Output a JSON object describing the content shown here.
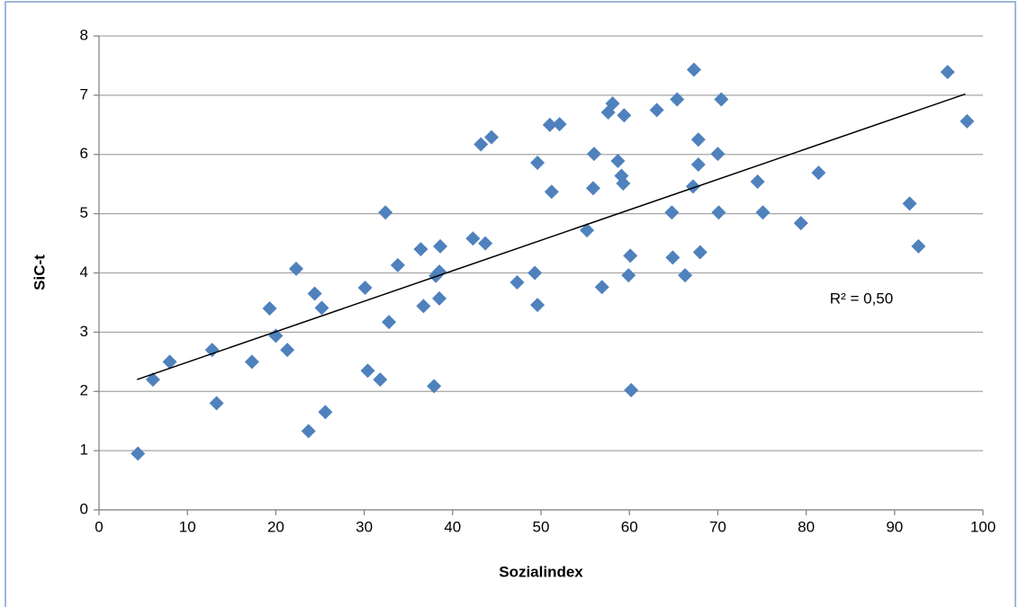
{
  "chart_data": {
    "type": "scatter",
    "x_label": "Sozialindex",
    "y_label": "SiC-t",
    "annotation": "R² = 0,50",
    "color": "#4f81bd",
    "grid": true,
    "xlim": [
      0,
      100
    ],
    "xticks": [
      0,
      10,
      20,
      30,
      40,
      50,
      60,
      70,
      80,
      90,
      100
    ],
    "ylim": [
      0,
      8
    ],
    "yticks": [
      0,
      1,
      2,
      3,
      4,
      5,
      6,
      7,
      8
    ],
    "x": [
      4.4,
      6.1,
      8.0,
      12.8,
      13.3,
      17.3,
      19.3,
      20.0,
      21.3,
      22.3,
      23.7,
      24.4,
      25.2,
      25.6,
      30.1,
      30.4,
      31.8,
      32.4,
      32.8,
      33.8,
      36.4,
      36.7,
      37.9,
      38.1,
      38.5,
      38.5,
      38.6,
      42.3,
      43.7,
      43.2,
      44.4,
      47.3,
      49.3,
      49.6,
      49.6,
      51.0,
      51.2,
      52.1,
      55.2,
      56.0,
      55.9,
      56.9,
      57.6,
      58.1,
      58.7,
      59.1,
      59.3,
      59.4,
      59.9,
      60.1,
      60.2,
      63.1,
      64.8,
      64.9,
      65.4,
      66.3,
      67.2,
      67.3,
      67.8,
      67.8,
      68.0,
      70.0,
      70.1,
      70.4,
      74.5,
      75.1,
      79.4,
      81.4,
      91.7,
      92.7,
      96.0,
      98.2
    ],
    "values": [
      0.95,
      2.2,
      2.5,
      2.7,
      1.8,
      2.5,
      3.4,
      2.94,
      2.7,
      4.07,
      1.33,
      3.65,
      3.41,
      1.65,
      3.75,
      2.35,
      2.2,
      5.02,
      3.17,
      4.13,
      4.4,
      3.44,
      2.09,
      3.95,
      4.02,
      3.57,
      4.45,
      4.58,
      4.5,
      6.17,
      6.29,
      3.84,
      4.0,
      5.86,
      3.46,
      6.5,
      5.37,
      6.51,
      4.72,
      6.01,
      5.43,
      3.76,
      6.71,
      6.86,
      5.89,
      5.64,
      5.51,
      6.66,
      3.96,
      4.29,
      2.02,
      6.75,
      5.02,
      4.26,
      6.93,
      3.96,
      5.46,
      7.43,
      6.25,
      5.83,
      4.35,
      6.01,
      5.02,
      6.93,
      5.54,
      5.02,
      4.84,
      5.69,
      5.17,
      4.45,
      7.39,
      6.56
    ],
    "trendline": {
      "x": [
        4.3,
        98
      ],
      "values": [
        2.2,
        7.02
      ]
    }
  }
}
